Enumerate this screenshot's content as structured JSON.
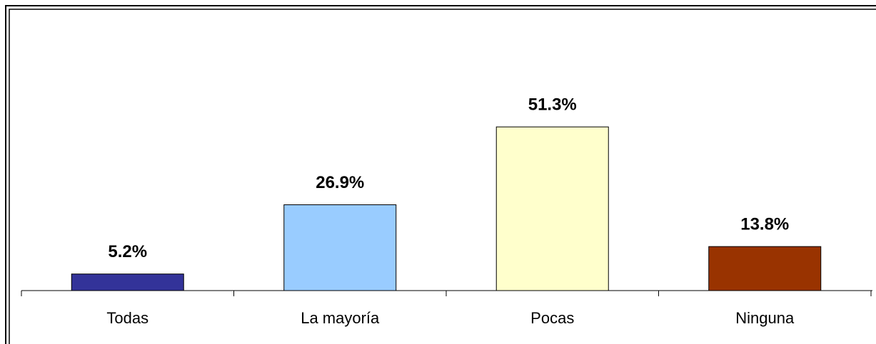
{
  "chart_data": {
    "type": "bar",
    "categories": [
      "Todas",
      "La mayoría",
      "Pocas",
      "Ninguna"
    ],
    "values": [
      5.2,
      26.9,
      51.3,
      13.8
    ],
    "value_labels": [
      "5.2%",
      "26.9%",
      "51.3%",
      "13.8%"
    ],
    "colors": [
      "#333399",
      "#99ccff",
      "#ffffcc",
      "#993300"
    ]
  }
}
